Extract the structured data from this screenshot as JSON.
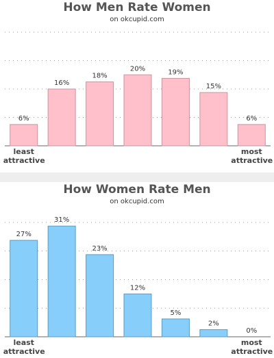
{
  "chart_data": [
    {
      "type": "bar",
      "title": "How Men Rate Women",
      "subtitle": "on okcupid.com",
      "categories": [
        "least attractive",
        null,
        null,
        null,
        null,
        null,
        "most attractive"
      ],
      "values": [
        6,
        16,
        18,
        20,
        19,
        15,
        6
      ],
      "value_labels": [
        "6%",
        "16%",
        "18%",
        "20%",
        "19%",
        "15%",
        "6%"
      ],
      "color": "#ffc0cb",
      "ylim": [
        0,
        32
      ],
      "yticks": [
        0,
        8,
        16,
        24,
        32
      ],
      "grid": true
    },
    {
      "type": "bar",
      "title": "How Women Rate Men",
      "subtitle": "on okcupid.com",
      "categories": [
        "least attractive",
        null,
        null,
        null,
        null,
        null,
        "most attractive"
      ],
      "values": [
        27,
        31,
        23,
        12,
        5,
        2,
        0
      ],
      "value_labels": [
        "27%",
        "31%",
        "23%",
        "12%",
        "5%",
        "2%",
        "0%"
      ],
      "color": "#87cefa",
      "ylim": [
        0,
        32
      ],
      "yticks": [
        0,
        8,
        16,
        24,
        32
      ],
      "grid": true
    }
  ]
}
